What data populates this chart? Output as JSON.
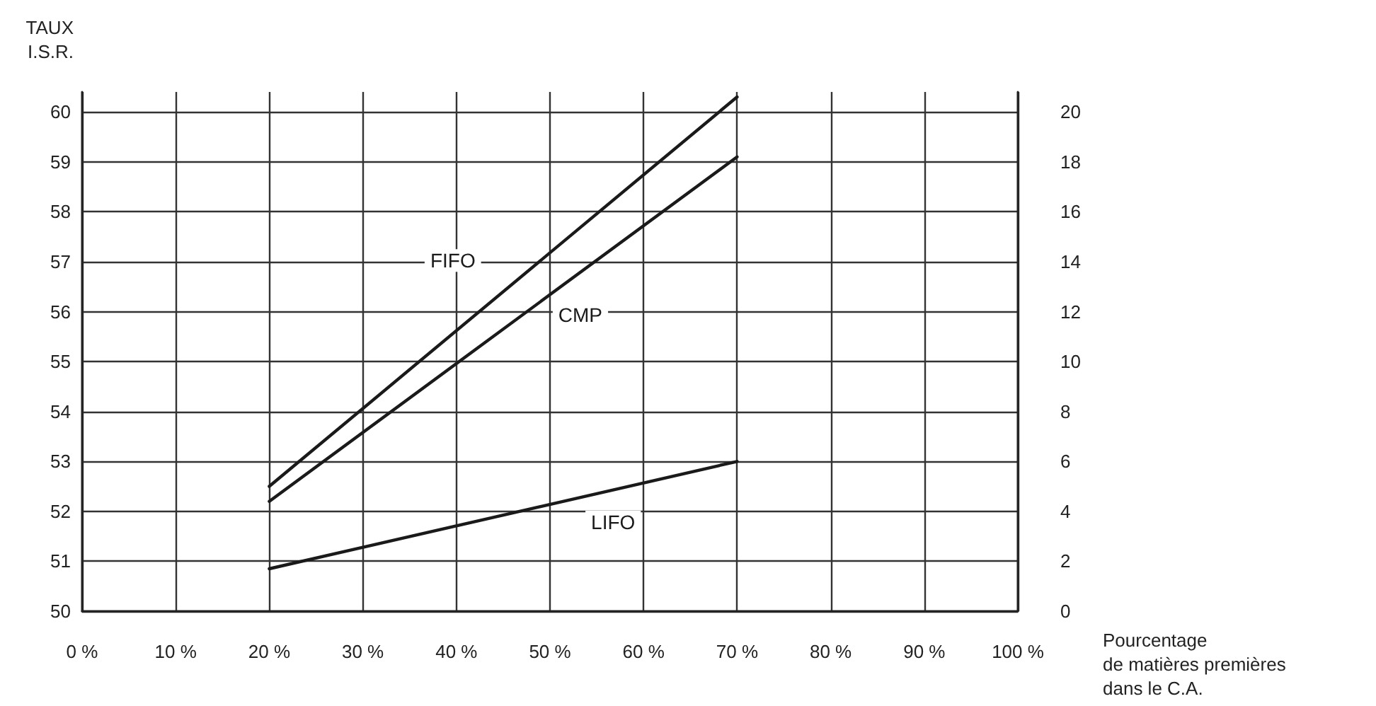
{
  "chart_data": {
    "type": "line",
    "ylabel": "TAUX\nI.S.R.",
    "xlabel": "Pourcentage\nde matières premières\ndans le C.A.",
    "xlim": [
      0,
      100
    ],
    "xticks": [
      {
        "value": 0,
        "label": "0 %"
      },
      {
        "value": 10,
        "label": "10 %"
      },
      {
        "value": 20,
        "label": "20 %"
      },
      {
        "value": 30,
        "label": "30 %"
      },
      {
        "value": 40,
        "label": "40 %"
      },
      {
        "value": 50,
        "label": "50 %"
      },
      {
        "value": 60,
        "label": "60 %"
      },
      {
        "value": 70,
        "label": "70 %"
      },
      {
        "value": 80,
        "label": "80 %"
      },
      {
        "value": 90,
        "label": "90 %"
      },
      {
        "value": 100,
        "label": "100 %"
      }
    ],
    "ylim": [
      50,
      60.4
    ],
    "yticks": [
      50,
      51,
      52,
      53,
      54,
      55,
      56,
      57,
      58,
      59,
      60
    ],
    "y2lim": [
      0,
      20.8
    ],
    "y2ticks": [
      0,
      2,
      4,
      6,
      8,
      10,
      12,
      14,
      16,
      18,
      20
    ],
    "x": [
      20,
      70
    ],
    "grid": true,
    "legend": false,
    "marker": "none",
    "line_style": "solid",
    "series": [
      {
        "name": "FIFO",
        "color": "#1a1a1a",
        "values": [
          52.5,
          60.3
        ]
      },
      {
        "name": "CMP",
        "color": "#1a1a1a",
        "values": [
          52.2,
          59.1
        ]
      },
      {
        "name": "LIFO",
        "color": "#1a1a1a",
        "values": [
          50.85,
          53.0
        ]
      }
    ]
  }
}
